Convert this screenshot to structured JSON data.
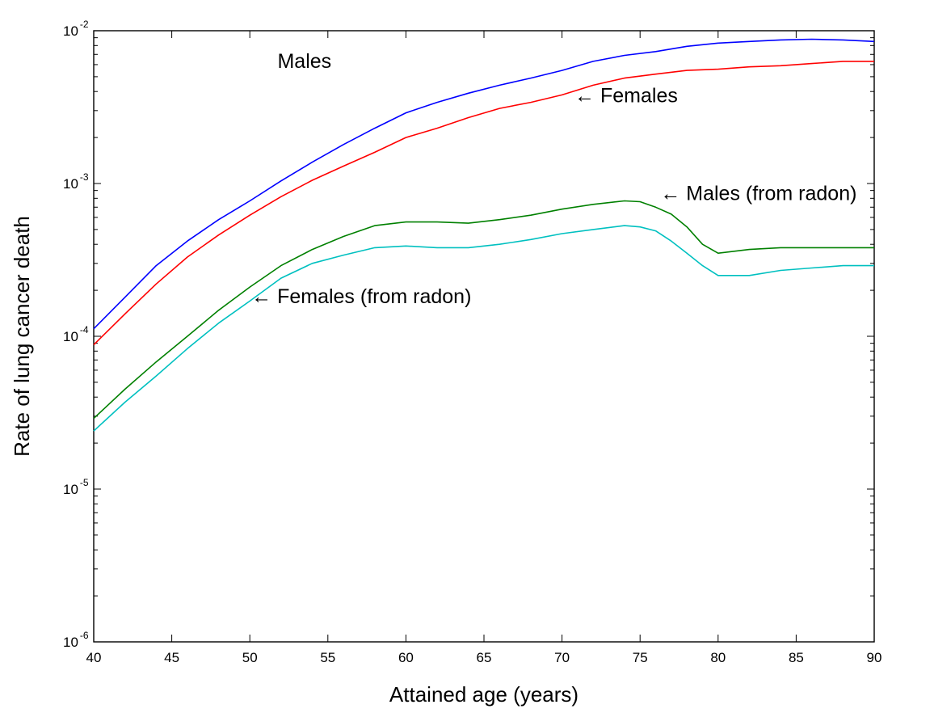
{
  "chart_data": {
    "type": "line",
    "title": "",
    "xlabel": "Attained age (years)",
    "ylabel": "Rate of lung cancer death",
    "xlim": [
      40,
      90
    ],
    "ylim": [
      1e-06,
      0.01
    ],
    "yscale": "log",
    "grid": false,
    "legend": "none",
    "x_ticks": [
      40,
      45,
      50,
      55,
      60,
      65,
      70,
      75,
      80,
      85,
      90
    ],
    "x_tick_labels": [
      "40",
      "45",
      "50",
      "55",
      "60",
      "65",
      "70",
      "75",
      "80",
      "85",
      "90"
    ],
    "y_ticks": [
      {
        "value": 1e-06,
        "base": "10",
        "exp": "-6"
      },
      {
        "value": 1e-05,
        "base": "10",
        "exp": "-5"
      },
      {
        "value": 0.0001,
        "base": "10",
        "exp": "-4"
      },
      {
        "value": 0.001,
        "base": "10",
        "exp": "-3"
      },
      {
        "value": 0.01,
        "base": "10",
        "exp": "-2"
      }
    ],
    "series": [
      {
        "color": "#0000ff",
        "points": [
          [
            40,
            0.000112
          ],
          [
            42,
            0.00018
          ],
          [
            44,
            0.00029
          ],
          [
            46,
            0.00042
          ],
          [
            48,
            0.00058
          ],
          [
            50,
            0.00077
          ],
          [
            52,
            0.00104
          ],
          [
            54,
            0.00138
          ],
          [
            56,
            0.0018
          ],
          [
            58,
            0.0023
          ],
          [
            60,
            0.0029
          ],
          [
            62,
            0.0034
          ],
          [
            64,
            0.0039
          ],
          [
            66,
            0.0044
          ],
          [
            68,
            0.0049
          ],
          [
            70,
            0.0055
          ],
          [
            72,
            0.0063
          ],
          [
            74,
            0.0069
          ],
          [
            76,
            0.0073
          ],
          [
            78,
            0.0079
          ],
          [
            80,
            0.0083
          ],
          [
            82,
            0.0085
          ],
          [
            84,
            0.0087
          ],
          [
            86,
            0.0088
          ],
          [
            88,
            0.0087
          ],
          [
            90,
            0.0085
          ]
        ]
      },
      {
        "color": "#ff0000",
        "points": [
          [
            40,
            8.8e-05
          ],
          [
            42,
            0.00014
          ],
          [
            44,
            0.00022
          ],
          [
            46,
            0.00033
          ],
          [
            48,
            0.00046
          ],
          [
            50,
            0.00062
          ],
          [
            52,
            0.00082
          ],
          [
            54,
            0.00105
          ],
          [
            56,
            0.0013
          ],
          [
            58,
            0.0016
          ],
          [
            60,
            0.002
          ],
          [
            62,
            0.0023
          ],
          [
            64,
            0.0027
          ],
          [
            66,
            0.0031
          ],
          [
            68,
            0.0034
          ],
          [
            70,
            0.0038
          ],
          [
            72,
            0.0044
          ],
          [
            74,
            0.0049
          ],
          [
            76,
            0.0052
          ],
          [
            78,
            0.0055
          ],
          [
            80,
            0.0056
          ],
          [
            82,
            0.0058
          ],
          [
            84,
            0.0059
          ],
          [
            86,
            0.0061
          ],
          [
            88,
            0.0063
          ],
          [
            90,
            0.0063
          ]
        ]
      },
      {
        "color": "#008000",
        "points": [
          [
            40,
            2.9e-05
          ],
          [
            42,
            4.5e-05
          ],
          [
            44,
            6.8e-05
          ],
          [
            46,
            0.0001
          ],
          [
            48,
            0.000148
          ],
          [
            50,
            0.00021
          ],
          [
            52,
            0.00029
          ],
          [
            54,
            0.00037
          ],
          [
            56,
            0.00045
          ],
          [
            58,
            0.00053
          ],
          [
            60,
            0.00056
          ],
          [
            62,
            0.00056
          ],
          [
            64,
            0.00055
          ],
          [
            66,
            0.00058
          ],
          [
            68,
            0.00062
          ],
          [
            70,
            0.00068
          ],
          [
            72,
            0.00073
          ],
          [
            74,
            0.00077
          ],
          [
            75,
            0.00076
          ],
          [
            76,
            0.0007
          ],
          [
            77,
            0.00063
          ],
          [
            78,
            0.00052
          ],
          [
            79,
            0.0004
          ],
          [
            80,
            0.00035
          ],
          [
            82,
            0.00037
          ],
          [
            84,
            0.00038
          ],
          [
            86,
            0.00038
          ],
          [
            88,
            0.00038
          ],
          [
            90,
            0.00038
          ]
        ]
      },
      {
        "color": "#00c0c0",
        "points": [
          [
            40,
            2.4e-05
          ],
          [
            42,
            3.7e-05
          ],
          [
            44,
            5.5e-05
          ],
          [
            46,
            8.3e-05
          ],
          [
            48,
            0.000122
          ],
          [
            50,
            0.00017
          ],
          [
            52,
            0.00024
          ],
          [
            54,
            0.0003
          ],
          [
            56,
            0.00034
          ],
          [
            58,
            0.00038
          ],
          [
            60,
            0.00039
          ],
          [
            62,
            0.00038
          ],
          [
            64,
            0.00038
          ],
          [
            66,
            0.0004
          ],
          [
            68,
            0.00043
          ],
          [
            70,
            0.00047
          ],
          [
            72,
            0.0005
          ],
          [
            74,
            0.00053
          ],
          [
            75,
            0.00052
          ],
          [
            76,
            0.00049
          ],
          [
            77,
            0.00042
          ],
          [
            78,
            0.00035
          ],
          [
            79,
            0.00029
          ],
          [
            80,
            0.00025
          ],
          [
            82,
            0.00025
          ],
          [
            84,
            0.00027
          ],
          [
            86,
            0.00028
          ],
          [
            88,
            0.00029
          ],
          [
            90,
            0.00029
          ]
        ]
      }
    ],
    "annotations": [
      {
        "text": "Males",
        "x": 53.5,
        "y": 0.0057,
        "anchor": "middle"
      },
      {
        "text": "← Females",
        "x": 70.8,
        "y": 0.0034,
        "anchor": "start"
      },
      {
        "text": "← Males (from radon)",
        "x": 76.3,
        "y": 0.00078,
        "anchor": "start"
      },
      {
        "text": "← Females (from radon)",
        "x": 50.1,
        "y": 0.000165,
        "anchor": "start"
      }
    ]
  }
}
